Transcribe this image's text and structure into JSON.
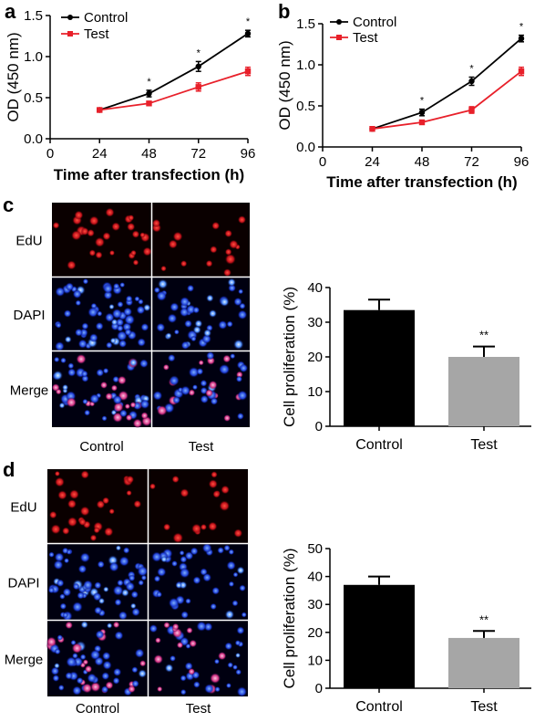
{
  "chart_data": [
    {
      "panel": "a",
      "type": "line",
      "xlabel": "Time after transfection (h)",
      "ylabel": "OD (450 nm)",
      "x": [
        24,
        48,
        72,
        96
      ],
      "xticks": [
        0,
        24,
        48,
        72,
        96
      ],
      "ylim": [
        0,
        1.5
      ],
      "yticks": [
        "0.0",
        "0.5",
        "1.0",
        "1.5"
      ],
      "legend_position": "top-left",
      "series": [
        {
          "name": "Control",
          "color": "#000000",
          "marker": "circle",
          "values": [
            0.35,
            0.55,
            0.88,
            1.28
          ],
          "errors": [
            0.02,
            0.04,
            0.06,
            0.04
          ]
        },
        {
          "name": "Test",
          "color": "#e8202a",
          "marker": "square",
          "values": [
            0.35,
            0.43,
            0.63,
            0.82
          ],
          "errors": [
            0.02,
            0.02,
            0.05,
            0.05
          ]
        }
      ],
      "annotations": [
        {
          "x": 48,
          "text": "*"
        },
        {
          "x": 72,
          "text": "*"
        },
        {
          "x": 96,
          "text": "*"
        }
      ]
    },
    {
      "panel": "b",
      "type": "line",
      "xlabel": "Time after transfection (h)",
      "ylabel": "OD (450 nm)",
      "x": [
        24,
        48,
        72,
        96
      ],
      "xticks": [
        0,
        24,
        48,
        72,
        96
      ],
      "ylim": [
        0,
        1.5
      ],
      "yticks": [
        "0.0",
        "0.5",
        "1.0",
        "1.5"
      ],
      "legend_position": "top-left",
      "series": [
        {
          "name": "Control",
          "color": "#000000",
          "marker": "circle",
          "values": [
            0.22,
            0.42,
            0.8,
            1.32
          ],
          "errors": [
            0.02,
            0.04,
            0.05,
            0.04
          ]
        },
        {
          "name": "Test",
          "color": "#e8202a",
          "marker": "square",
          "values": [
            0.22,
            0.3,
            0.45,
            0.92
          ],
          "errors": [
            0.02,
            0.02,
            0.04,
            0.05
          ]
        }
      ],
      "annotations": [
        {
          "x": 48,
          "text": "*"
        },
        {
          "x": 72,
          "text": "*"
        },
        {
          "x": 96,
          "text": "*"
        }
      ]
    },
    {
      "panel": "c",
      "type": "bar",
      "ylabel": "Cell proliferation (%)",
      "categories": [
        "Control",
        "Test"
      ],
      "values": [
        33.5,
        20
      ],
      "errors": [
        3,
        3
      ],
      "colors": [
        "#000000",
        "#a6a6a6"
      ],
      "ylim": [
        0,
        40
      ],
      "yticks": [
        0,
        10,
        20,
        30,
        40
      ],
      "annotations": [
        {
          "category": "Test",
          "text": "**"
        }
      ]
    },
    {
      "panel": "d",
      "type": "bar",
      "ylabel": "Cell proliferation (%)",
      "categories": [
        "Control",
        "Test"
      ],
      "values": [
        37,
        18
      ],
      "errors": [
        3,
        2.5
      ],
      "colors": [
        "#000000",
        "#a6a6a6"
      ],
      "ylim": [
        0,
        50
      ],
      "yticks": [
        0,
        10,
        20,
        30,
        40,
        50
      ],
      "annotations": [
        {
          "category": "Test",
          "text": "**"
        }
      ]
    }
  ],
  "panel_labels": {
    "a": "a",
    "b": "b",
    "c": "c",
    "d": "d"
  },
  "micrographs": {
    "c": {
      "rows": [
        "EdU",
        "DAPI",
        "Merge"
      ],
      "columns": [
        "Control",
        "Test"
      ]
    },
    "d": {
      "rows": [
        "EdU",
        "DAPI",
        "Merge"
      ],
      "columns": [
        "Control",
        "Test"
      ]
    }
  }
}
